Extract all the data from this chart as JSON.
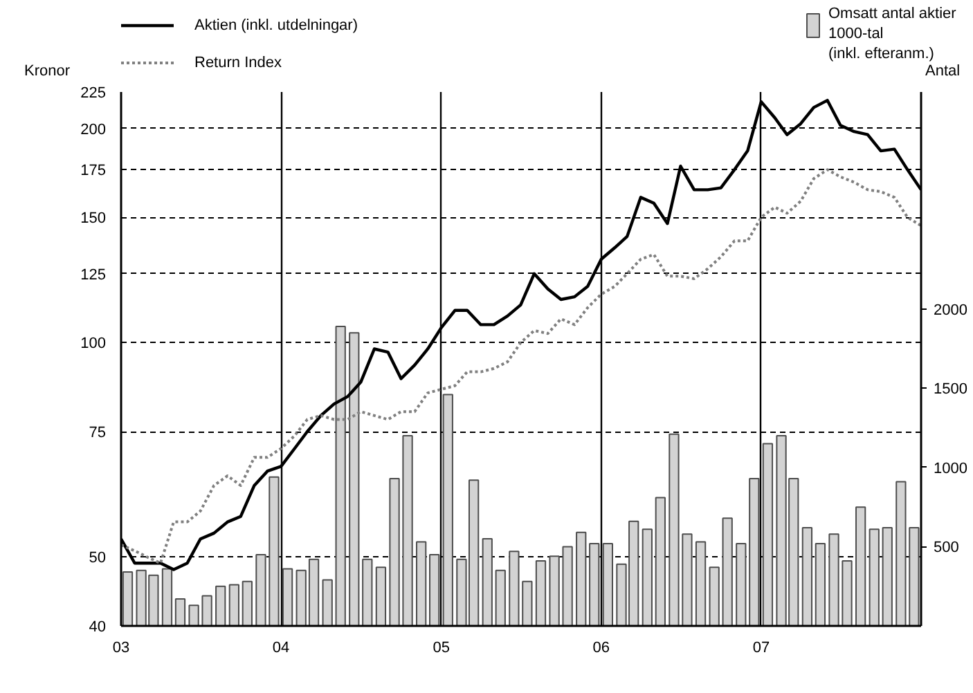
{
  "chart_data": {
    "type": "line",
    "ylabel": "Kronor",
    "y2label": "Antal",
    "xlim": [
      "2003",
      "2008"
    ],
    "xticks": [
      {
        "value": "2003",
        "label": "03"
      },
      {
        "value": "2004",
        "label": "04"
      },
      {
        "value": "2005",
        "label": "05"
      },
      {
        "value": "2006",
        "label": "06"
      },
      {
        "value": "2007",
        "label": "07"
      }
    ],
    "ylim": [
      40,
      225
    ],
    "yticks": [
      40,
      50,
      75,
      100,
      125,
      150,
      175,
      200,
      225
    ],
    "log": true,
    "y2lim": [
      0,
      3370
    ],
    "y2ticks": [
      500,
      1000,
      1500,
      2000
    ],
    "grid": true,
    "legend": "top",
    "series": [
      {
        "name": "Omsatt antal aktier\n1000-tal\n(inkl. efteranm.)",
        "type": "bar",
        "axis": "y2",
        "color": "#d3d3d3",
        "x": [
          "2003-01-16",
          "2003-02-16",
          "2003-03-16",
          "2003-04-16",
          "2003-05-16",
          "2003-06-16",
          "2003-07-16",
          "2003-08-16",
          "2003-09-16",
          "2003-10-16",
          "2003-11-16",
          "2003-12-16",
          "2004-01-16",
          "2004-02-16",
          "2004-03-16",
          "2004-04-16",
          "2004-05-16",
          "2004-06-16",
          "2004-07-16",
          "2004-08-16",
          "2004-09-16",
          "2004-10-16",
          "2004-11-16",
          "2004-12-16",
          "2005-01-16",
          "2005-02-16",
          "2005-03-16",
          "2005-04-16",
          "2005-05-16",
          "2005-06-16",
          "2005-07-16",
          "2005-08-16",
          "2005-09-16",
          "2005-10-16",
          "2005-11-16",
          "2005-12-16",
          "2006-01-16",
          "2006-02-16",
          "2006-03-16",
          "2006-04-16",
          "2006-05-16",
          "2006-06-16",
          "2006-07-16",
          "2006-08-16",
          "2006-09-16",
          "2006-10-16",
          "2006-11-16",
          "2006-12-16",
          "2007-01-16",
          "2007-02-16",
          "2007-03-16",
          "2007-04-16",
          "2007-05-16",
          "2007-06-16",
          "2007-07-16",
          "2007-08-16",
          "2007-09-16",
          "2007-10-16",
          "2007-11-16",
          "2007-12-16"
        ],
        "values": [
          340,
          350,
          320,
          360,
          170,
          130,
          190,
          250,
          260,
          280,
          450,
          940,
          360,
          350,
          420,
          290,
          1890,
          1850,
          420,
          370,
          930,
          1200,
          530,
          450,
          1460,
          420,
          920,
          550,
          350,
          470,
          280,
          410,
          440,
          500,
          590,
          520,
          520,
          390,
          660,
          610,
          810,
          1210,
          580,
          530,
          370,
          680,
          520,
          930,
          1150,
          1200,
          930,
          620,
          520,
          580,
          410,
          750,
          610,
          620,
          910,
          620
        ]
      },
      {
        "name": "Aktien (inkl. utdelningar)",
        "color": "#000000",
        "line_style": "solid",
        "values": [
          53,
          49,
          49,
          49,
          48,
          49,
          53,
          54,
          56,
          57,
          63,
          66,
          67,
          71,
          75,
          79,
          82,
          84,
          88,
          98,
          97,
          89,
          93,
          98,
          105,
          111,
          111,
          106,
          106,
          109,
          113,
          125,
          119,
          115,
          116,
          120,
          131,
          136,
          141,
          160,
          157,
          147,
          177,
          164,
          164,
          165,
          175,
          186,
          218,
          207,
          196,
          203,
          214,
          219,
          202,
          198,
          196,
          186,
          187,
          175,
          164
        ]
      },
      {
        "name": "Return Index",
        "color": "#808080",
        "line_style": "dotted",
        "values": [
          52,
          51,
          50,
          49,
          56,
          56,
          58,
          63,
          65,
          63,
          69,
          69,
          71,
          74,
          78,
          79,
          78,
          78,
          80,
          79,
          78,
          80,
          80,
          85,
          86,
          87,
          91,
          91,
          92,
          94,
          100,
          104,
          103,
          108,
          106,
          112,
          117,
          120,
          125,
          131,
          133,
          124,
          124,
          123,
          127,
          132,
          139,
          139,
          150,
          155,
          152,
          158,
          170,
          175,
          171,
          168,
          164,
          163,
          160,
          150,
          146
        ]
      }
    ],
    "x": [
      "2003-01",
      "2003-02",
      "2003-03",
      "2003-04",
      "2003-05",
      "2003-06",
      "2003-07",
      "2003-08",
      "2003-09",
      "2003-10",
      "2003-11",
      "2003-12",
      "2004-01",
      "2004-02",
      "2004-03",
      "2004-04",
      "2004-05",
      "2004-06",
      "2004-07",
      "2004-08",
      "2004-09",
      "2004-10",
      "2004-11",
      "2004-12",
      "2005-01",
      "2005-02",
      "2005-03",
      "2005-04",
      "2005-05",
      "2005-06",
      "2005-07",
      "2005-08",
      "2005-09",
      "2005-10",
      "2005-11",
      "2005-12",
      "2006-01",
      "2006-02",
      "2006-03",
      "2006-04",
      "2006-05",
      "2006-06",
      "2006-07",
      "2006-08",
      "2006-09",
      "2006-10",
      "2006-11",
      "2006-12",
      "2007-01",
      "2007-02",
      "2007-03",
      "2007-04",
      "2007-05",
      "2007-06",
      "2007-07",
      "2007-08",
      "2007-09",
      "2007-10",
      "2007-11",
      "2007-12",
      "2008-01"
    ]
  }
}
